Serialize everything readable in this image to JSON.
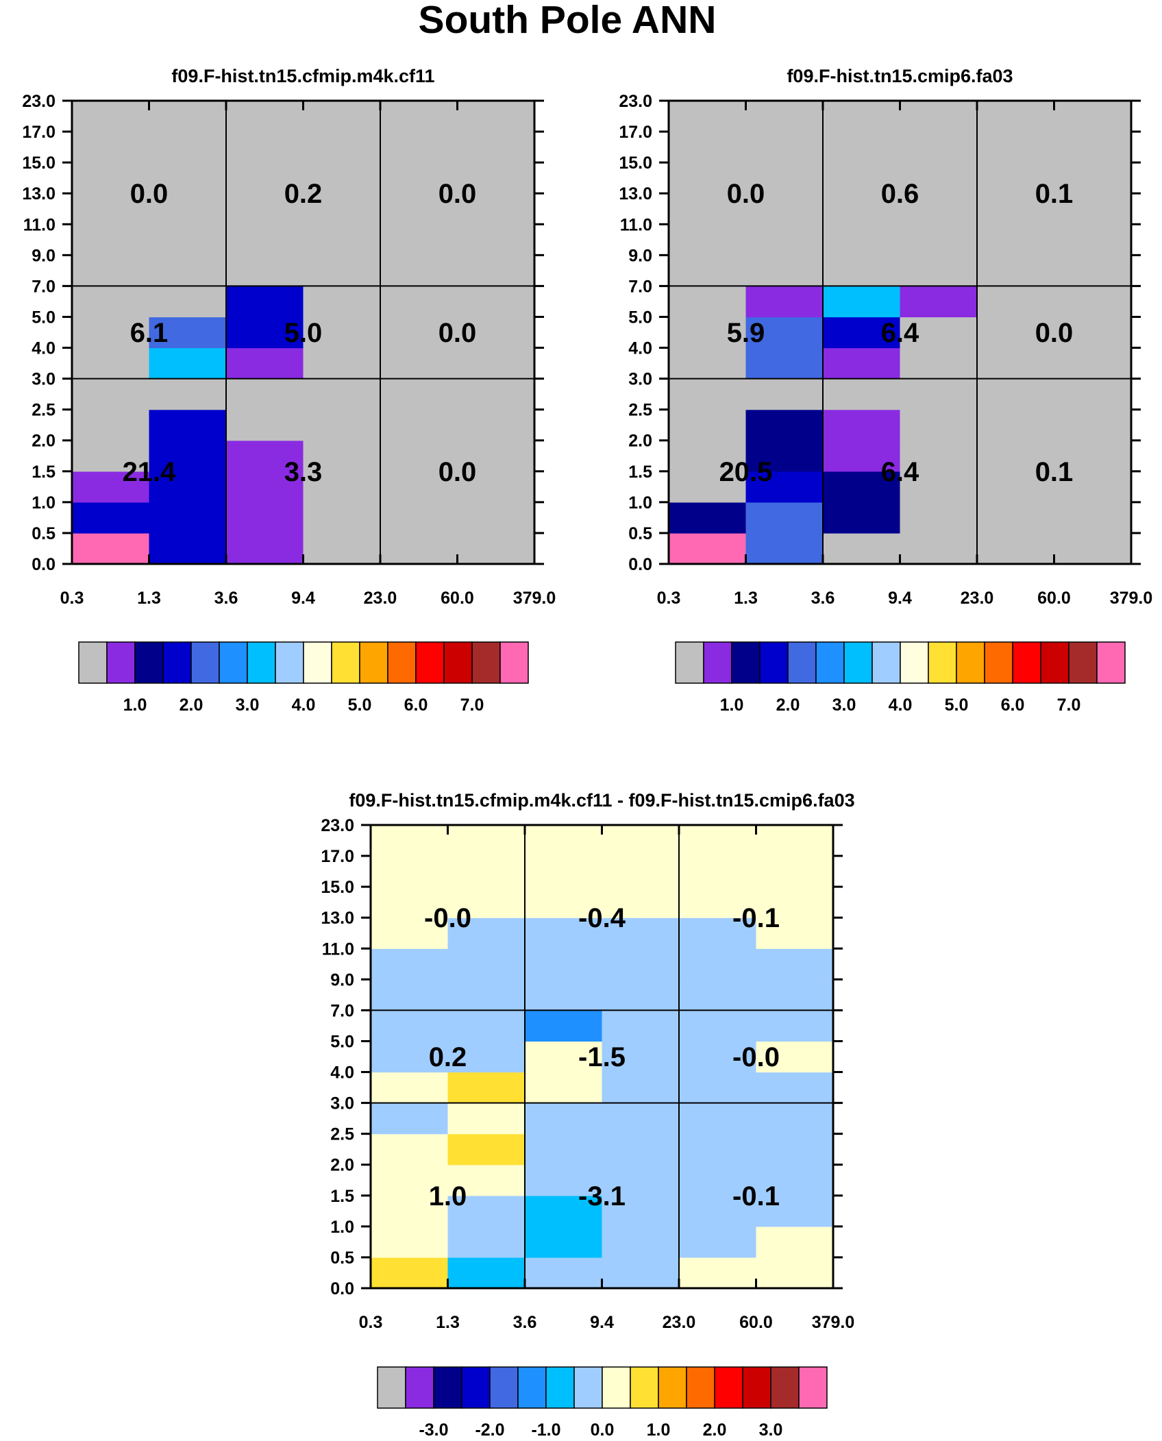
{
  "title": "South Pole ANN",
  "color_tables": {
    "abs": [
      "#c0c0c0",
      "#8a2be2",
      "#00008b",
      "#0000cd",
      "#4169e1",
      "#1e90ff",
      "#00bfff",
      "#a0cdff",
      "#ffffe0",
      "#ffe033",
      "#ffa500",
      "#ff6a00",
      "#ff0000",
      "#cd0000",
      "#a52a2a",
      "#ff69b4"
    ],
    "diff": [
      "#c0c0c0",
      "#8a2be2",
      "#00008b",
      "#0000cd",
      "#4169e1",
      "#1e90ff",
      "#00bfff",
      "#a0cdff",
      "#ffffd0",
      "#ffe033",
      "#ffa500",
      "#ff6a00",
      "#ff0000",
      "#cd0000",
      "#a52a2a",
      "#ff69b4"
    ]
  },
  "chart_data": [
    {
      "type": "heatmap",
      "name": "panel-a",
      "title": "f09.F-hist.tn15.cfmip.m4k.cf11",
      "x_ticks": [
        "0.3",
        "1.3",
        "3.6",
        "9.4",
        "23.0",
        "60.0",
        "379.0"
      ],
      "y_ticks": [
        "0.0",
        "0.5",
        "1.0",
        "1.5",
        "2.0",
        "2.5",
        "3.0",
        "4.0",
        "5.0",
        "7.0",
        "9.0",
        "11.0",
        "13.0",
        "15.0",
        "17.0",
        "23.0"
      ],
      "cell_level_rows_bottom_to_top": [
        [
          15,
          3,
          1,
          0,
          0,
          0
        ],
        [
          3,
          3,
          1,
          0,
          0,
          0
        ],
        [
          1,
          3,
          1,
          0,
          0,
          0
        ],
        [
          0,
          3,
          1,
          0,
          0,
          0
        ],
        [
          0,
          3,
          0,
          0,
          0,
          0
        ],
        [
          0,
          0,
          0,
          0,
          0,
          0
        ],
        [
          0,
          6,
          1,
          0,
          0,
          0
        ],
        [
          0,
          4,
          3,
          0,
          0,
          0
        ],
        [
          0,
          0,
          3,
          0,
          0,
          0
        ],
        [
          0,
          0,
          0,
          0,
          0,
          0
        ],
        [
          0,
          0,
          0,
          0,
          0,
          0
        ],
        [
          0,
          0,
          0,
          0,
          0,
          0
        ],
        [
          0,
          0,
          0,
          0,
          0,
          0
        ],
        [
          0,
          0,
          0,
          0,
          0,
          0
        ],
        [
          0,
          0,
          0,
          0,
          0,
          0
        ]
      ],
      "block_totals_bottom_to_top": [
        [
          "21.4",
          "3.3",
          "0.0"
        ],
        [
          "6.1",
          "5.0",
          "0.0"
        ],
        [
          "0.0",
          "0.2",
          "0.0"
        ]
      ],
      "colorbar": {
        "palette": "abs",
        "labels": [
          "1.0",
          "2.0",
          "3.0",
          "4.0",
          "5.0",
          "6.0",
          "7.0"
        ]
      }
    },
    {
      "type": "heatmap",
      "name": "panel-b",
      "title": "f09.F-hist.tn15.cmip6.fa03",
      "x_ticks": [
        "0.3",
        "1.3",
        "3.6",
        "9.4",
        "23.0",
        "60.0",
        "379.0"
      ],
      "y_ticks": [
        "0.0",
        "0.5",
        "1.0",
        "1.5",
        "2.0",
        "2.5",
        "3.0",
        "4.0",
        "5.0",
        "7.0",
        "9.0",
        "11.0",
        "13.0",
        "15.0",
        "17.0",
        "23.0"
      ],
      "cell_level_rows_bottom_to_top": [
        [
          15,
          4,
          0,
          0,
          0,
          0
        ],
        [
          2,
          4,
          2,
          0,
          0,
          0
        ],
        [
          0,
          3,
          2,
          0,
          0,
          0
        ],
        [
          0,
          2,
          1,
          0,
          0,
          0
        ],
        [
          0,
          2,
          1,
          0,
          0,
          0
        ],
        [
          0,
          0,
          0,
          0,
          0,
          0
        ],
        [
          0,
          4,
          1,
          0,
          0,
          0
        ],
        [
          0,
          4,
          3,
          0,
          0,
          0
        ],
        [
          0,
          1,
          6,
          1,
          0,
          0
        ],
        [
          0,
          0,
          0,
          0,
          0,
          0
        ],
        [
          0,
          0,
          0,
          0,
          0,
          0
        ],
        [
          0,
          0,
          0,
          0,
          0,
          0
        ],
        [
          0,
          0,
          0,
          0,
          0,
          0
        ],
        [
          0,
          0,
          0,
          0,
          0,
          0
        ],
        [
          0,
          0,
          0,
          0,
          0,
          0
        ]
      ],
      "block_totals_bottom_to_top": [
        [
          "20.5",
          "6.4",
          "0.1"
        ],
        [
          "5.9",
          "6.4",
          "0.0"
        ],
        [
          "0.0",
          "0.6",
          "0.1"
        ]
      ],
      "colorbar": {
        "palette": "abs",
        "labels": [
          "1.0",
          "2.0",
          "3.0",
          "4.0",
          "5.0",
          "6.0",
          "7.0"
        ]
      }
    },
    {
      "type": "heatmap",
      "name": "panel-diff",
      "title": "f09.F-hist.tn15.cfmip.m4k.cf11 - f09.F-hist.tn15.cmip6.fa03",
      "x_ticks": [
        "0.3",
        "1.3",
        "3.6",
        "9.4",
        "23.0",
        "60.0",
        "379.0"
      ],
      "y_ticks": [
        "0.0",
        "0.5",
        "1.0",
        "1.5",
        "2.0",
        "2.5",
        "3.0",
        "4.0",
        "5.0",
        "7.0",
        "9.0",
        "11.0",
        "13.0",
        "15.0",
        "17.0",
        "23.0"
      ],
      "cell_level_rows_bottom_to_top": [
        [
          9,
          6,
          7,
          7,
          8,
          8
        ],
        [
          8,
          7,
          6,
          7,
          7,
          8
        ],
        [
          8,
          7,
          6,
          7,
          7,
          7
        ],
        [
          8,
          8,
          7,
          7,
          7,
          7
        ],
        [
          8,
          9,
          7,
          7,
          7,
          7
        ],
        [
          7,
          8,
          7,
          7,
          7,
          7
        ],
        [
          8,
          9,
          8,
          7,
          7,
          7
        ],
        [
          7,
          7,
          8,
          7,
          7,
          8
        ],
        [
          7,
          7,
          5,
          7,
          7,
          7
        ],
        [
          7,
          7,
          7,
          7,
          7,
          7
        ],
        [
          7,
          7,
          7,
          7,
          7,
          7
        ],
        [
          7,
          7,
          7,
          7,
          7,
          7
        ],
        [
          8,
          8,
          8,
          8,
          8,
          8
        ],
        [
          8,
          8,
          8,
          8,
          8,
          8
        ],
        [
          8,
          8,
          8,
          8,
          8,
          8
        ]
      ],
      "cell_value_note": "level index into color table; partial row adjustments applied below",
      "row_overrides": [
        {
          "row": 11,
          "values": [
            8,
            7,
            7,
            7,
            7,
            8
          ]
        },
        {
          "row": 10,
          "values": [
            7,
            7,
            7,
            7,
            7,
            7
          ]
        }
      ],
      "block_totals_bottom_to_top": [
        [
          "1.0",
          "-3.1",
          "-0.1"
        ],
        [
          "0.2",
          "-1.5",
          "-0.0"
        ],
        [
          "-0.0",
          "-0.4",
          "-0.1"
        ]
      ],
      "colorbar": {
        "palette": "diff",
        "labels": [
          "-3.0",
          "-2.0",
          "-1.0",
          "0.0",
          "1.0",
          "2.0",
          "3.0"
        ]
      }
    }
  ]
}
